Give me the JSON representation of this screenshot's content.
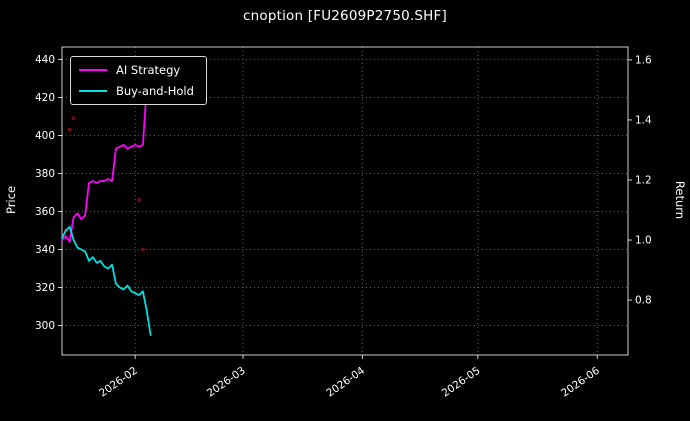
{
  "title": "cnoption [FU2609P2750.SHF]",
  "colors": {
    "background": "#000000",
    "text": "#ffffff",
    "grid": "#777777",
    "frame": "#ffffff",
    "ai_strategy": "#ff00ff",
    "buy_and_hold": "#00e0e0",
    "signal_dots": "#7a0c0c"
  },
  "chart_data": {
    "type": "line",
    "title": "cnoption [FU2609P2750.SHF]",
    "xlabel": "",
    "x_axis_type": "date",
    "grid": true,
    "x_domain_days": [
      "2026-01-13",
      "2026-06-09"
    ],
    "x_grid_dates": [
      "2026-02-01",
      "2026-03-01",
      "2026-04-01",
      "2026-05-01",
      "2026-06-01"
    ],
    "x_tick_labels": [
      "2026-02",
      "2026-03",
      "2026-04",
      "2026-05",
      "2026-06"
    ],
    "left_axis": {
      "label": "Price",
      "ticks": [
        300,
        320,
        340,
        360,
        380,
        400,
        420,
        440
      ],
      "range": [
        284.5,
        446.5
      ]
    },
    "right_axis": {
      "label": "Return",
      "ticks": [
        0.8,
        1.0,
        1.2,
        1.4,
        1.6
      ],
      "range": [
        0.617,
        1.643
      ]
    },
    "legend": {
      "position": "upper-left",
      "entries": [
        {
          "label": "AI Strategy",
          "color": "#ff00ff"
        },
        {
          "label": "Buy-and-Hold",
          "color": "#00e0e0"
        }
      ]
    },
    "series": [
      {
        "name": "AI Strategy",
        "data_name": "ai-strategy-line",
        "color": "#ff00ff",
        "axis": "left",
        "dates": [
          "2026-01-13",
          "2026-01-14",
          "2026-01-15",
          "2026-01-16",
          "2026-01-17",
          "2026-01-18",
          "2026-01-19",
          "2026-01-20",
          "2026-01-21",
          "2026-01-22",
          "2026-01-23",
          "2026-01-24",
          "2026-01-25",
          "2026-01-26",
          "2026-01-27",
          "2026-01-28",
          "2026-01-29",
          "2026-01-30",
          "2026-01-31",
          "2026-02-01",
          "2026-02-02",
          "2026-02-03",
          "2026-02-04"
        ],
        "values": [
          345,
          347,
          344,
          357,
          359,
          356,
          358,
          375,
          376,
          375,
          376,
          376,
          377,
          376,
          393,
          394,
          395,
          393,
          394,
          395,
          394,
          395,
          425
        ]
      },
      {
        "name": "Buy-and-Hold",
        "data_name": "buy-and-hold-line",
        "color": "#00e0e0",
        "axis": "left",
        "dates": [
          "2026-01-13",
          "2026-01-14",
          "2026-01-15",
          "2026-01-16",
          "2026-01-17",
          "2026-01-18",
          "2026-01-19",
          "2026-01-20",
          "2026-01-21",
          "2026-01-22",
          "2026-01-23",
          "2026-01-24",
          "2026-01-25",
          "2026-01-26",
          "2026-01-27",
          "2026-01-28",
          "2026-01-29",
          "2026-01-30",
          "2026-01-31",
          "2026-02-01",
          "2026-02-02",
          "2026-02-03",
          "2026-02-04",
          "2026-02-05"
        ],
        "values": [
          346,
          350,
          352,
          345,
          341,
          340,
          339,
          334,
          336,
          333,
          334,
          331,
          330,
          332,
          322,
          320,
          319,
          321,
          318,
          317,
          316,
          318,
          308,
          295
        ]
      }
    ],
    "scatter": {
      "name": "signal-dots",
      "color": "#7a0c0c",
      "points": [
        {
          "date": "2026-01-15",
          "price": 403
        },
        {
          "date": "2026-01-16",
          "price": 409
        },
        {
          "date": "2026-01-14",
          "price": 350
        },
        {
          "date": "2026-02-02",
          "price": 366
        },
        {
          "date": "2026-02-03",
          "price": 340
        }
      ]
    }
  }
}
